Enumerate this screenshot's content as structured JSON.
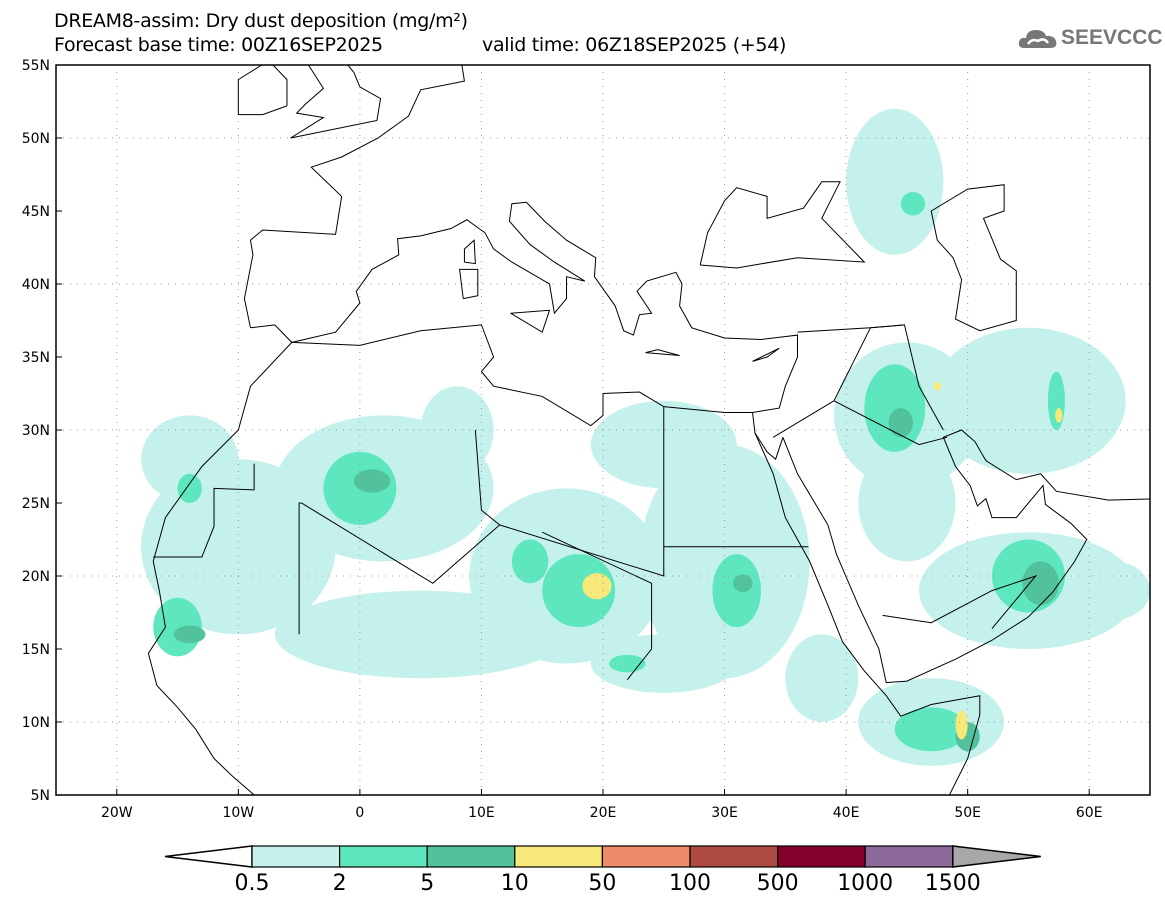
{
  "header": {
    "title": "DREAM8-assim: Dry dust deposition (mg/m²)",
    "base_time": "Forecast base time: 00Z16SEP2025",
    "valid_time": "valid time: 06Z18SEP2025 (+54)",
    "logo": "SEEVCCC"
  },
  "map": {
    "lon_range": [
      -25,
      65
    ],
    "lat_range": [
      5,
      55
    ],
    "lat_labels": [
      "5N",
      "10N",
      "15N",
      "20N",
      "25N",
      "30N",
      "35N",
      "40N",
      "45N",
      "50N",
      "55N"
    ],
    "lat_values": [
      5,
      10,
      15,
      20,
      25,
      30,
      35,
      40,
      45,
      50,
      55
    ],
    "lon_labels": [
      "20W",
      "10W",
      "0",
      "10E",
      "20E",
      "30E",
      "40E",
      "50E",
      "60E"
    ],
    "lon_values": [
      -20,
      -10,
      0,
      10,
      20,
      30,
      40,
      50,
      60
    ]
  },
  "colorbar": {
    "labels": [
      "0.5",
      "2",
      "5",
      "10",
      "50",
      "100",
      "500",
      "1000",
      "1500"
    ],
    "colors": [
      "#c4f1eb",
      "#5ee6bf",
      "#52c29d",
      "#f7e87a",
      "#ee8c6a",
      "#ad4b42",
      "#83002b",
      "#8e6a9b"
    ],
    "over_color": "#a8a8a8"
  }
}
